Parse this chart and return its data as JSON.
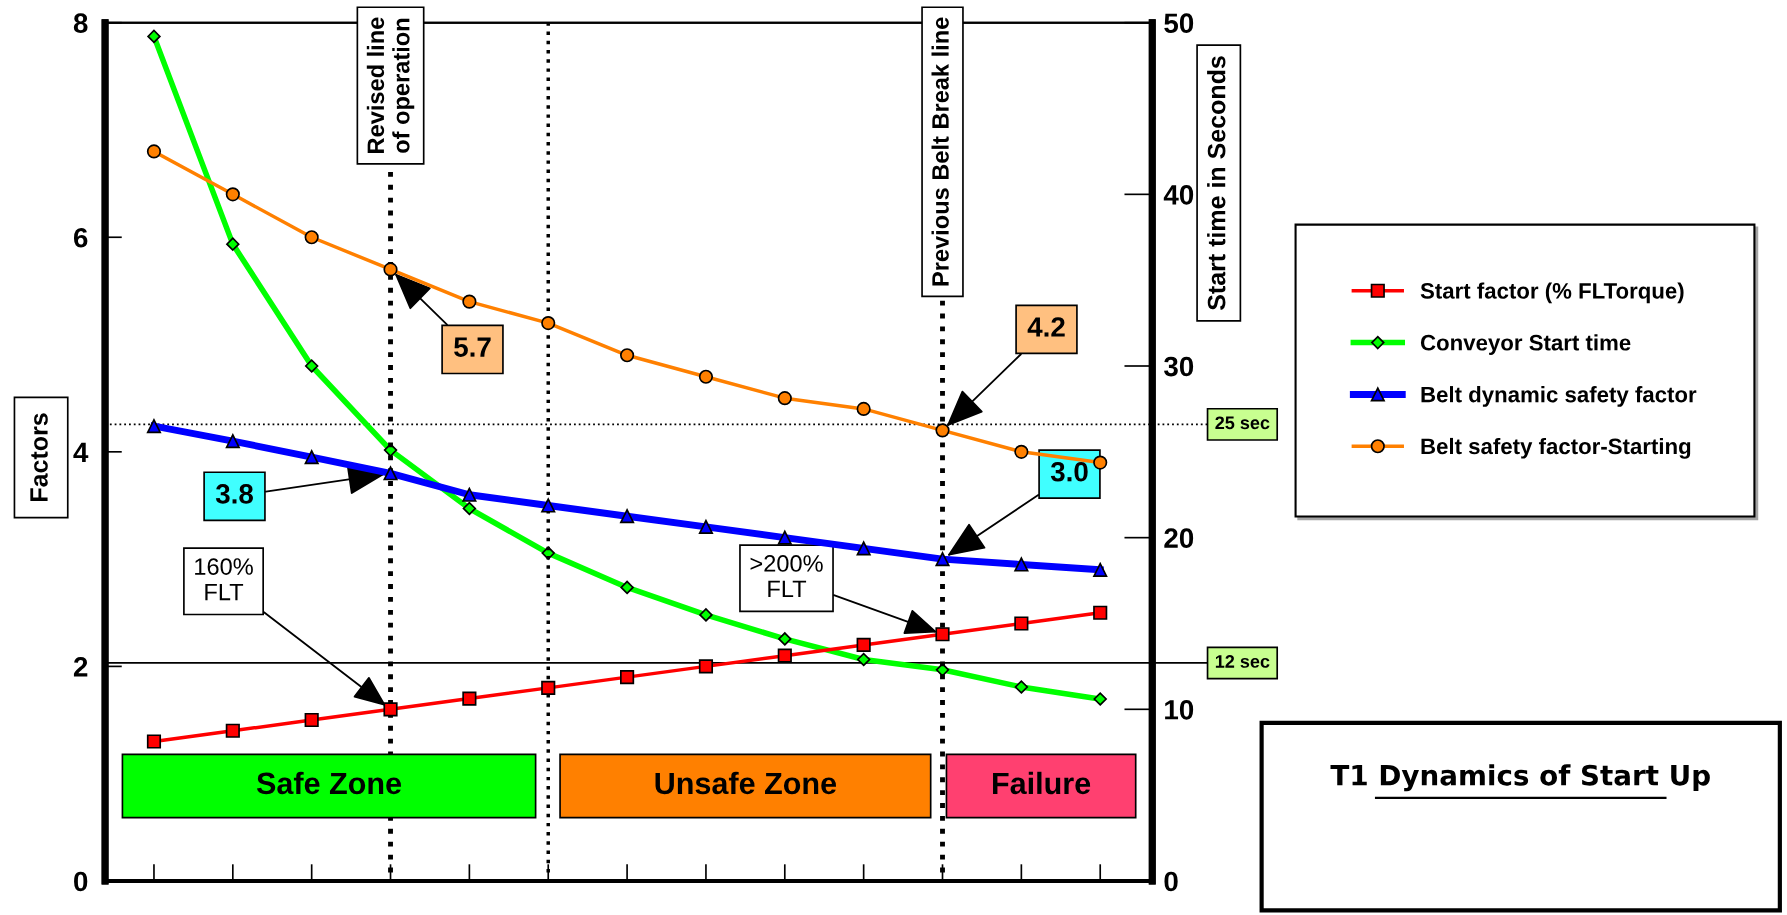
{
  "chart_data": {
    "type": "line",
    "title": "T1 Dynamics of Start Up",
    "ylabel": "Factors",
    "y2label": "Start time in Seconds",
    "categories": [
      null,
      null,
      null,
      null,
      null,
      null,
      null,
      null,
      null,
      null,
      null,
      null,
      null
    ],
    "series": [
      {
        "name": "Start factor (% FLTorque)",
        "color": "#ff0000",
        "marker": "square",
        "values": [
          1.3,
          1.4,
          1.5,
          1.6,
          1.7,
          1.8,
          1.9,
          2.0,
          2.1,
          2.2,
          2.3,
          2.4,
          2.5
        ],
        "value_labels": [
          null,
          null,
          null,
          "160%\nFLT",
          null,
          null,
          null,
          null,
          null,
          null,
          ">200%\nFLT",
          null,
          null
        ]
      },
      {
        "name": "Conveyor Start time",
        "color": "#00ff00",
        "marker": "diamond",
        "axis": "y2",
        "values": [
          49.2,
          37.1,
          30.0,
          25.1,
          21.7,
          19.1,
          17.1,
          15.5,
          14.1,
          12.9,
          12.3,
          11.3,
          10.6
        ]
      },
      {
        "name": "Belt dynamic safety factor",
        "color": "#0000ff",
        "marker": "triangle",
        "values": [
          4.24,
          4.1,
          3.95,
          3.8,
          3.6,
          3.5,
          3.4,
          3.3,
          3.2,
          3.1,
          3.0,
          2.95,
          2.9
        ],
        "value_labels": [
          null,
          null,
          null,
          "3.8",
          null,
          null,
          null,
          null,
          null,
          null,
          "3.0",
          null,
          null
        ]
      },
      {
        "name": "Belt safety factor-Starting",
        "color": "#ff8000",
        "marker": "circle",
        "values": [
          6.8,
          6.4,
          6.0,
          5.7,
          5.4,
          5.2,
          4.9,
          4.7,
          4.5,
          4.4,
          4.2,
          4.0,
          3.9
        ],
        "value_labels": [
          null,
          null,
          null,
          "5.7",
          null,
          null,
          null,
          null,
          null,
          null,
          "4.2",
          null,
          null
        ]
      }
    ],
    "ylim": [
      0,
      8
    ],
    "yticks": [
      0,
      2,
      4,
      6,
      8
    ],
    "y2lim": [
      0,
      50
    ],
    "y2ticks": [
      0,
      10,
      20,
      30,
      40,
      50
    ],
    "ref_lines": [
      {
        "axis": "y2",
        "value": 26.6,
        "label": "25 sec",
        "line_style": "dotted"
      },
      {
        "axis": "y2",
        "value": 12.7,
        "label": "12 sec",
        "line_style": "solid"
      }
    ],
    "annotations": [
      "Revised line\nof operation",
      "Previous Belt Break line",
      "Safe Zone",
      "Unsafe Zone",
      "Failure"
    ],
    "grid": false,
    "legend": "right",
    "tick_labels": "y"
  }
}
